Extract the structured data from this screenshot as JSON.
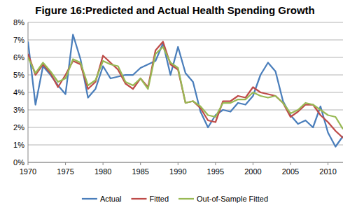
{
  "chart_data": {
    "type": "line",
    "title": "Figure 16:Predicted and Actual Health Spending Growth",
    "x": [
      1970,
      1971,
      1972,
      1973,
      1974,
      1975,
      1976,
      1977,
      1978,
      1979,
      1980,
      1981,
      1982,
      1983,
      1984,
      1985,
      1986,
      1987,
      1988,
      1989,
      1990,
      1991,
      1992,
      1993,
      1994,
      1995,
      1996,
      1997,
      1998,
      1999,
      2000,
      2001,
      2002,
      2003,
      2004,
      2005,
      2006,
      2007,
      2008,
      2009,
      2010,
      2011,
      2012
    ],
    "series": [
      {
        "name": "Actual",
        "color": "#4a7ebb",
        "values": [
          6.9,
          3.3,
          5.5,
          5.0,
          4.4,
          3.9,
          7.3,
          5.9,
          3.7,
          4.2,
          5.5,
          4.8,
          4.9,
          5.0,
          5.0,
          5.4,
          5.6,
          5.8,
          6.8,
          5.0,
          6.6,
          5.1,
          4.6,
          2.9,
          2.0,
          2.7,
          3.0,
          2.9,
          3.4,
          3.3,
          3.8,
          5.0,
          5.7,
          5.2,
          3.5,
          2.7,
          2.2,
          2.4,
          2.0,
          3.2,
          1.7,
          0.9,
          1.5
        ]
      },
      {
        "name": "Fitted",
        "color": "#be4b48",
        "values": [
          6.2,
          5.0,
          5.6,
          5.1,
          4.3,
          5.0,
          5.8,
          5.6,
          4.2,
          4.6,
          6.1,
          5.7,
          5.3,
          4.5,
          4.2,
          4.8,
          4.3,
          6.4,
          6.9,
          5.6,
          5.3,
          3.4,
          3.5,
          3.1,
          2.4,
          2.3,
          3.5,
          3.5,
          3.8,
          3.7,
          4.3,
          4.0,
          3.9,
          3.8,
          3.4,
          2.6,
          2.9,
          3.3,
          3.3,
          2.7,
          2.3,
          1.8,
          1.4
        ]
      },
      {
        "name": "Out-of-Sample Fitted",
        "color": "#98b954",
        "values": [
          6.0,
          5.1,
          5.7,
          5.2,
          4.6,
          4.8,
          5.9,
          5.7,
          4.4,
          4.7,
          5.8,
          5.6,
          5.5,
          4.6,
          4.4,
          4.8,
          4.2,
          6.2,
          6.6,
          5.7,
          5.4,
          3.4,
          3.5,
          3.2,
          2.7,
          2.6,
          3.4,
          3.4,
          3.6,
          3.6,
          4.0,
          3.8,
          3.7,
          3.8,
          3.4,
          2.8,
          3.0,
          3.4,
          3.3,
          3.0,
          2.7,
          2.6,
          1.9
        ]
      }
    ],
    "xlim": [
      1970,
      2012
    ],
    "xticks": [
      1970,
      1975,
      1980,
      1985,
      1990,
      1995,
      2000,
      2005,
      2010
    ],
    "ylim": [
      0,
      8
    ],
    "yticks": [
      {
        "value": 0,
        "label": "0%"
      },
      {
        "value": 1,
        "label": "1%"
      },
      {
        "value": 2,
        "label": "2%"
      },
      {
        "value": 3,
        "label": "3%"
      },
      {
        "value": 4,
        "label": "4%"
      },
      {
        "value": 5,
        "label": "5%"
      },
      {
        "value": 6,
        "label": "6%"
      },
      {
        "value": 7,
        "label": "7%"
      },
      {
        "value": 8,
        "label": "8%"
      }
    ],
    "grid": true,
    "legend": "bottom"
  }
}
